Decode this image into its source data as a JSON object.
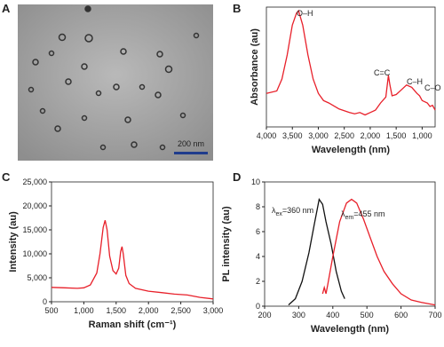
{
  "image_panel": {
    "panel": "A",
    "scale_bar": "200 nm"
  },
  "chart_data": [
    {
      "type": "line",
      "panel": "B",
      "x_label": "Wavelength (nm)",
      "y_label": "Absorbance (au)",
      "xlim": [
        4000,
        750
      ],
      "ylim": [
        0,
        1
      ],
      "xticks": [
        {
          "value": 4000,
          "label": "4,000"
        },
        {
          "value": 3500,
          "label": "3,500"
        },
        {
          "value": 3000,
          "label": "3,000"
        },
        {
          "value": 2500,
          "label": "2,500"
        },
        {
          "value": 2000,
          "label": "2,000"
        },
        {
          "value": 1500,
          "label": "1,500"
        },
        {
          "value": 1000,
          "label": "1,000"
        }
      ],
      "annotations": [
        {
          "text": "O–H"
        },
        {
          "text": "C=C"
        },
        {
          "text": "C–H"
        },
        {
          "text": "C–O"
        }
      ],
      "series": [
        {
          "color": "#e8202a",
          "x": [
            4000,
            3800,
            3700,
            3600,
            3500,
            3420,
            3380,
            3300,
            3200,
            3100,
            3000,
            2900,
            2800,
            2600,
            2400,
            2300,
            2200,
            2100,
            2000,
            1900,
            1800,
            1700,
            1650,
            1620,
            1580,
            1500,
            1400,
            1300,
            1200,
            1100,
            1050,
            1000,
            900,
            850,
            800,
            750
          ],
          "values": [
            0.28,
            0.3,
            0.4,
            0.6,
            0.85,
            0.95,
            0.97,
            0.85,
            0.6,
            0.4,
            0.28,
            0.22,
            0.2,
            0.15,
            0.12,
            0.11,
            0.12,
            0.1,
            0.12,
            0.14,
            0.2,
            0.25,
            0.43,
            0.35,
            0.26,
            0.27,
            0.31,
            0.35,
            0.33,
            0.28,
            0.26,
            0.22,
            0.2,
            0.17,
            0.18,
            0.14
          ]
        }
      ]
    },
    {
      "type": "line",
      "panel": "C",
      "x_label": "Raman shift (cm⁻¹)",
      "y_label": "Intensity (au)",
      "xlim": [
        500,
        3000
      ],
      "ylim": [
        0,
        25000
      ],
      "xticks": [
        500,
        {
          "value": 1000,
          "label": "1,000"
        },
        {
          "value": 1500,
          "label": "1,500"
        },
        {
          "value": 2000,
          "label": "2,000"
        },
        {
          "value": 2500,
          "label": "2,500"
        },
        {
          "value": 3000,
          "label": "3,000"
        }
      ],
      "yticks": [
        0,
        {
          "value": 5000,
          "label": "5,000"
        },
        {
          "value": 10000,
          "label": "10,000"
        },
        {
          "value": 15000,
          "label": "15,000"
        },
        {
          "value": 20000,
          "label": "20,000"
        },
        {
          "value": 25000,
          "label": "25,000"
        }
      ],
      "series": [
        {
          "color": "#e8202a",
          "x": [
            500,
            700,
            900,
            1000,
            1100,
            1200,
            1250,
            1300,
            1330,
            1360,
            1400,
            1450,
            1500,
            1540,
            1570,
            1590,
            1610,
            1650,
            1700,
            1800,
            2000,
            2200,
            2400,
            2600,
            2800,
            3000
          ],
          "values": [
            3000,
            2900,
            2800,
            2900,
            3500,
            6000,
            10000,
            15500,
            17000,
            15000,
            9500,
            6500,
            5800,
            7000,
            10500,
            11500,
            10000,
            5500,
            3800,
            2800,
            2200,
            1900,
            1600,
            1400,
            900,
            600
          ]
        }
      ]
    },
    {
      "type": "line",
      "panel": "D",
      "x_label": "Wavelength (nm)",
      "y_label": "PL intensity (au)",
      "xlim": [
        200,
        700
      ],
      "ylim": [
        0,
        10
      ],
      "xticks": [
        200,
        300,
        400,
        500,
        600,
        700
      ],
      "yticks": [
        0,
        2,
        4,
        6,
        8,
        10
      ],
      "annotations": [
        {
          "symbol": "λ",
          "subscript": "ex",
          "text": "=360 nm"
        },
        {
          "symbol": "λ",
          "subscript": "em",
          "text": "=455 nm"
        }
      ],
      "series": [
        {
          "color": "#111111",
          "x": [
            270,
            290,
            310,
            330,
            345,
            360,
            370,
            380,
            395,
            410,
            425,
            435
          ],
          "values": [
            0.1,
            0.6,
            2.0,
            4.3,
            6.5,
            8.6,
            8.2,
            6.8,
            5.0,
            2.8,
            1.2,
            0.6
          ]
        },
        {
          "color": "#e8202a",
          "x": [
            370,
            375,
            380,
            385,
            400,
            420,
            440,
            455,
            470,
            490,
            510,
            530,
            550,
            575,
            600,
            630,
            660,
            700
          ],
          "values": [
            1.0,
            1.5,
            1.0,
            1.7,
            4.0,
            6.8,
            8.3,
            8.6,
            8.3,
            7.0,
            5.5,
            4.0,
            2.8,
            1.8,
            1.0,
            0.5,
            0.3,
            0.1
          ]
        }
      ]
    }
  ]
}
